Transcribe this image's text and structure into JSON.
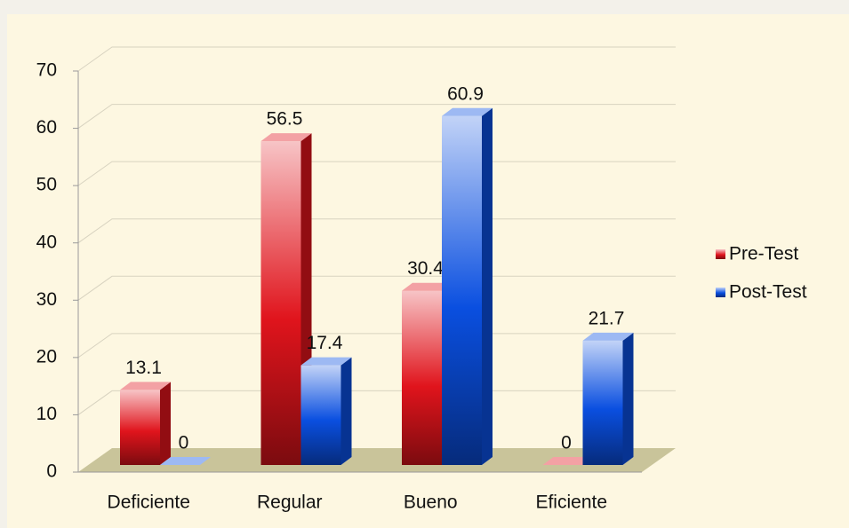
{
  "chart_data": {
    "type": "bar",
    "categories": [
      "Deficiente",
      "Regular",
      "Bueno",
      "Eficiente"
    ],
    "series": [
      {
        "name": "Pre-Test",
        "color": "#e0141c",
        "values": [
          13.1,
          56.5,
          30.4,
          0
        ]
      },
      {
        "name": "Post-Test",
        "color": "#0a4fe0",
        "values": [
          0,
          17.4,
          60.9,
          21.7
        ]
      }
    ],
    "ylim": [
      0,
      70
    ],
    "yticks": [
      0,
      10,
      20,
      30,
      40,
      50,
      60,
      70
    ],
    "grid": true,
    "legend": "right"
  }
}
